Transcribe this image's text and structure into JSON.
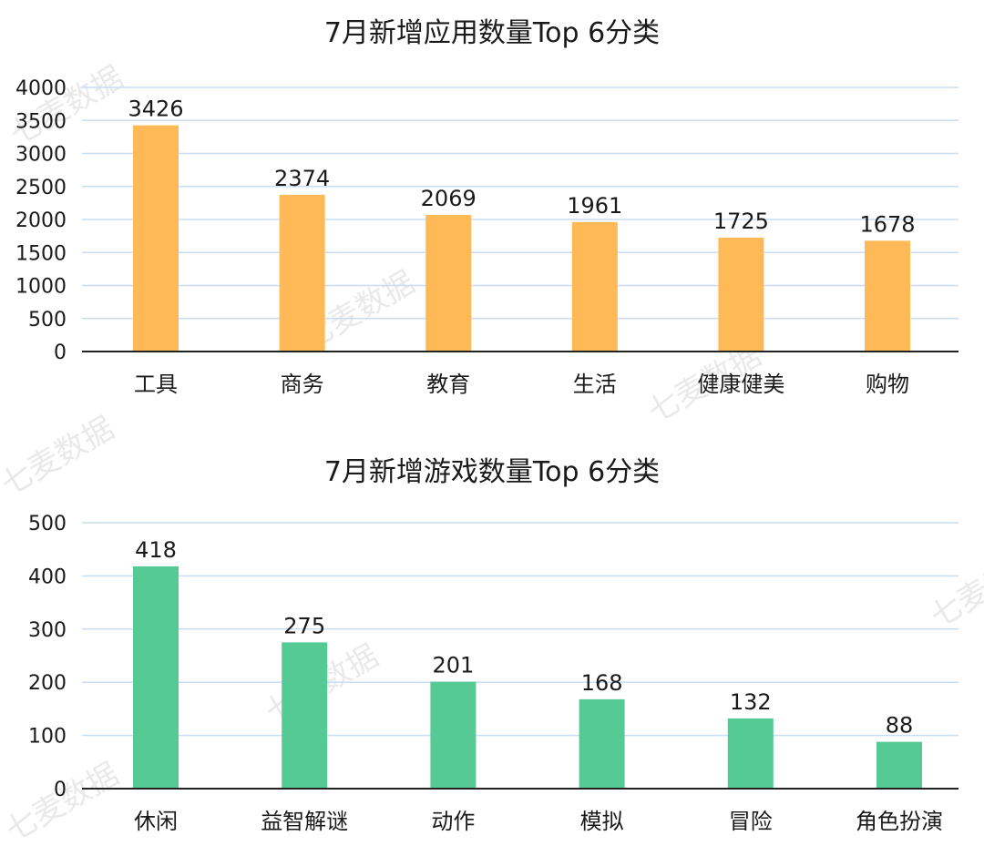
{
  "watermark": "七麦数据",
  "chart_data": [
    {
      "type": "bar",
      "title": "7月新增应用数量Top 6分类",
      "categories": [
        "工具",
        "商务",
        "教育",
        "生活",
        "健康健美",
        "购物"
      ],
      "values": [
        3426,
        2374,
        2069,
        1961,
        1725,
        1678
      ],
      "ylim": [
        0,
        4000
      ],
      "yticks": [
        0,
        500,
        1000,
        1500,
        2000,
        2500,
        3000,
        3500,
        4000
      ],
      "grid": true,
      "color": "#FFB957"
    },
    {
      "type": "bar",
      "title": "7月新增游戏数量Top 6分类",
      "categories": [
        "休闲",
        "益智解谜",
        "动作",
        "模拟",
        "冒险",
        "角色扮演"
      ],
      "values": [
        418,
        275,
        201,
        168,
        132,
        88
      ],
      "ylim": [
        0,
        500
      ],
      "yticks": [
        0,
        100,
        200,
        300,
        400,
        500
      ],
      "grid": true,
      "color": "#55CA94"
    }
  ]
}
